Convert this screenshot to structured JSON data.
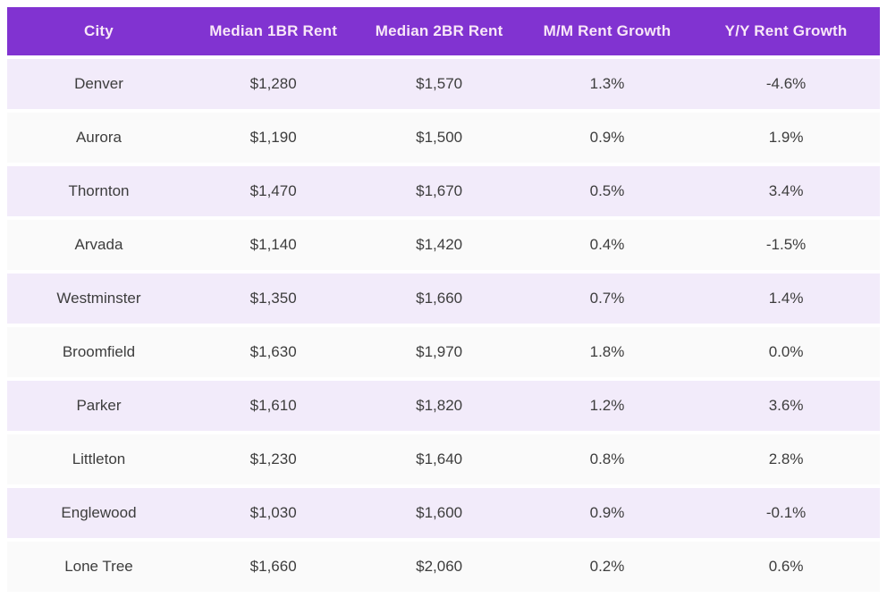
{
  "chart_data": {
    "type": "table",
    "columns": [
      "City",
      "Median 1BR Rent",
      "Median 2BR Rent",
      "M/M Rent Growth",
      "Y/Y Rent Growth"
    ],
    "rows": [
      [
        "Denver",
        "$1,280",
        "$1,570",
        "1.3%",
        "-4.6%"
      ],
      [
        "Aurora",
        "$1,190",
        "$1,500",
        "0.9%",
        "1.9%"
      ],
      [
        "Thornton",
        "$1,470",
        "$1,670",
        "0.5%",
        "3.4%"
      ],
      [
        "Arvada",
        "$1,140",
        "$1,420",
        "0.4%",
        "-1.5%"
      ],
      [
        "Westminster",
        "$1,350",
        "$1,660",
        "0.7%",
        "1.4%"
      ],
      [
        "Broomfield",
        "$1,630",
        "$1,970",
        "1.8%",
        "0.0%"
      ],
      [
        "Parker",
        "$1,610",
        "$1,820",
        "1.2%",
        "3.6%"
      ],
      [
        "Littleton",
        "$1,230",
        "$1,640",
        "0.8%",
        "2.8%"
      ],
      [
        "Englewood",
        "$1,030",
        "$1,600",
        "0.9%",
        "-0.1%"
      ],
      [
        "Lone Tree",
        "$1,660",
        "$2,060",
        "0.2%",
        "0.6%"
      ]
    ],
    "title": "",
    "legend": null,
    "grid": "row-striping"
  },
  "colors": {
    "header_bg": "#8133d1",
    "header_text": "#f8e7f8",
    "row_odd_bg": "#f2ebfa",
    "row_even_bg": "#fafafa",
    "cell_text": "#3d3d3d",
    "page_bg": "#ffffff"
  }
}
